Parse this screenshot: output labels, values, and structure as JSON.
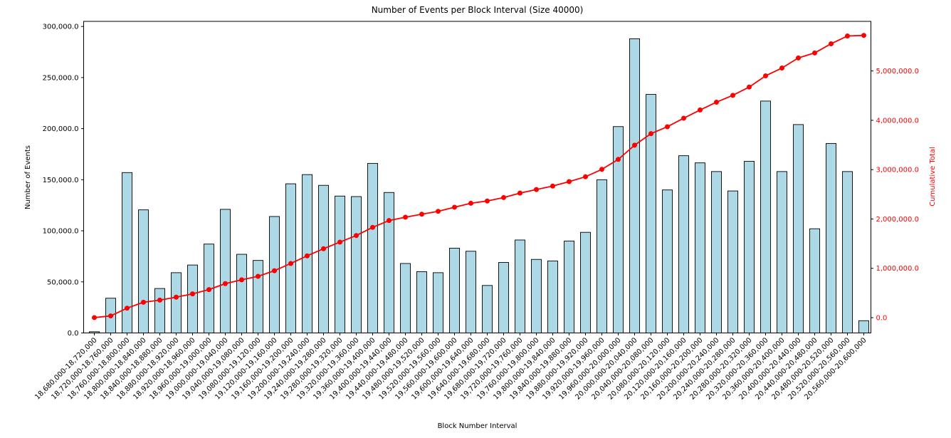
{
  "chart_data": {
    "type": "bar",
    "title": "Number of Events per Block Interval (Size 40000)",
    "xlabel": "Block Number Interval",
    "ylabel_left": "Number of Events",
    "ylabel_right": "Cumulative Total",
    "legend_position": "none",
    "grid": false,
    "categories": [
      "18,680,000-18,720,000",
      "18,720,000-18,760,000",
      "18,760,000-18,800,000",
      "18,800,000-18,840,000",
      "18,840,000-18,880,000",
      "18,880,000-18,920,000",
      "18,920,000-18,960,000",
      "18,960,000-19,000,000",
      "19,000,000-19,040,000",
      "19,040,000-19,080,000",
      "19,080,000-19,120,000",
      "19,120,000-19,160,000",
      "19,160,000-19,200,000",
      "19,200,000-19,240,000",
      "19,240,000-19,280,000",
      "19,280,000-19,320,000",
      "19,320,000-19,360,000",
      "19,360,000-19,400,000",
      "19,400,000-19,440,000",
      "19,440,000-19,480,000",
      "19,480,000-19,520,000",
      "19,520,000-19,560,000",
      "19,560,000-19,600,000",
      "19,600,000-19,640,000",
      "19,640,000-19,680,000",
      "19,680,000-19,720,000",
      "19,720,000-19,760,000",
      "19,760,000-19,800,000",
      "19,800,000-19,840,000",
      "19,840,000-19,880,000",
      "19,880,000-19,920,000",
      "19,920,000-19,960,000",
      "19,960,000-20,000,000",
      "20,000,000-20,040,000",
      "20,040,000-20,080,000",
      "20,080,000-20,120,000",
      "20,120,000-20,160,000",
      "20,160,000-20,200,000",
      "20,200,000-20,240,000",
      "20,240,000-20,280,000",
      "20,280,000-20,320,000",
      "20,320,000-20,360,000",
      "20,360,000-20,400,000",
      "20,400,000-20,440,000",
      "20,440,000-20,480,000",
      "20,480,000-20,520,000",
      "20,520,000-20,560,000",
      "20,560,000-20,600,000"
    ],
    "series": [
      {
        "name": "Number of Events",
        "type": "bar",
        "axis": "left",
        "values": [
          1200,
          34000,
          157000,
          120500,
          43500,
          59000,
          66500,
          87000,
          121000,
          77000,
          71000,
          114000,
          146000,
          155000,
          144500,
          134000,
          133500,
          166000,
          137500,
          68000,
          60000,
          59000,
          83000,
          80000,
          46500,
          69000,
          91000,
          72000,
          70500,
          90000,
          98500,
          150000,
          202000,
          288000,
          233500,
          140000,
          173500,
          166500,
          158000,
          139000,
          168000,
          227000,
          158000,
          204000,
          102000,
          185500,
          158000,
          12000
        ]
      },
      {
        "name": "Cumulative Total",
        "type": "line",
        "axis": "right",
        "values": [
          1200,
          35200,
          192200,
          312700,
          356200,
          415200,
          481700,
          568700,
          689700,
          766700,
          837700,
          951700,
          1097700,
          1252700,
          1397200,
          1531200,
          1664700,
          1830700,
          1968200,
          2036200,
          2096200,
          2155200,
          2238200,
          2318200,
          2364700,
          2433700,
          2524700,
          2596700,
          2667200,
          2757200,
          2855700,
          3005700,
          3207700,
          3495700,
          3729200,
          3869200,
          4042700,
          4209200,
          4367200,
          4506200,
          4674200,
          4901200,
          5059200,
          5263200,
          5365200,
          5550700,
          5708700,
          5720700
        ]
      }
    ],
    "left_axis": {
      "ticks": [
        0,
        50000,
        100000,
        150000,
        200000,
        250000,
        300000
      ],
      "tick_labels": [
        "0.0",
        "50,000.0",
        "100,000.0",
        "150,000.0",
        "200,000.0",
        "250,000.0",
        "300,000.0"
      ],
      "range": [
        0,
        305000
      ]
    },
    "right_axis": {
      "ticks": [
        0,
        1000000,
        2000000,
        3000000,
        4000000,
        5000000
      ],
      "tick_labels": [
        "0.0",
        "1,000,000.0",
        "2,000,000.0",
        "3,000,000.0",
        "4,000,000.0",
        "5,000,000.0"
      ],
      "range": [
        -310000,
        6005000
      ]
    },
    "colors": {
      "bar_fill": "#add8e6",
      "bar_edge": "#000000",
      "line": "#ff0000",
      "right_label_color": "#ff0000",
      "axis_color": "#000000",
      "background": "#ffffff"
    }
  }
}
